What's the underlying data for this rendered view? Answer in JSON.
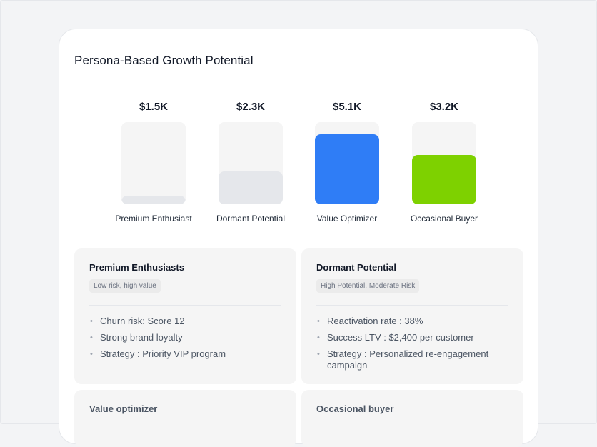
{
  "card": {
    "title": "Persona-Based Growth Potential"
  },
  "chart_data": {
    "type": "bar",
    "categories": [
      "Premium Enthusiast",
      "Dormant Potential",
      "Value Optimizer",
      "Occasional Buyer"
    ],
    "values": [
      1.5,
      2.3,
      5.1,
      3.2
    ],
    "value_labels": [
      "$1.5K",
      "$2.3K",
      "$5.1K",
      "$3.2K"
    ],
    "fill_fractions": [
      0.1,
      0.4,
      0.85,
      0.6
    ],
    "colors": [
      "#e5e7eb",
      "#e5e7eb",
      "#2f7df6",
      "#7ed100"
    ],
    "title": "Persona-Based Growth Potential",
    "xlabel": "",
    "ylabel": ""
  },
  "panels": [
    {
      "title": "Premium Enthusiasts",
      "tag": "Low risk, high value",
      "items": [
        "Churn risk: Score 12",
        "Strong brand loyalty",
        "Strategy : Priority VIP program"
      ]
    },
    {
      "title": "Dormant Potential",
      "tag": "High Potential, Moderate Risk",
      "items": [
        "Reactivation rate : 38%",
        "Success LTV : $2,400 per customer",
        "Strategy : Personalized re-engagement campaign"
      ]
    },
    {
      "title": "Value optimizer"
    },
    {
      "title": "Occasional buyer"
    }
  ]
}
